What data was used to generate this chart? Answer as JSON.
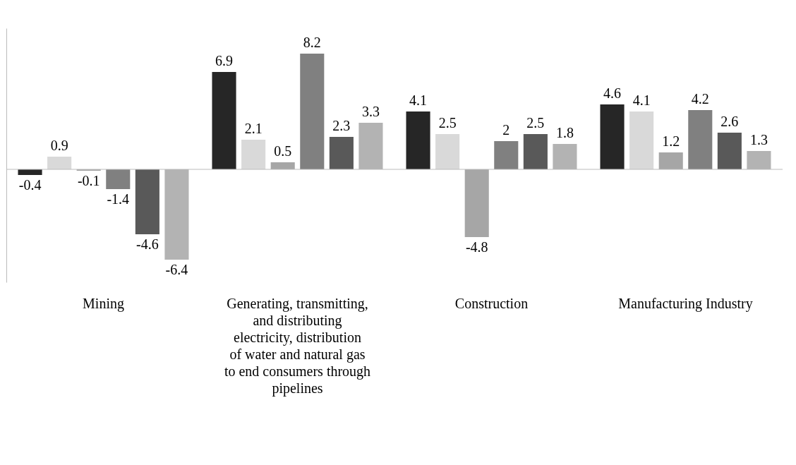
{
  "chart_data": {
    "type": "bar",
    "categories": [
      "Mining",
      "Generating, transmitting, and distributing electricity, distribution of water and natural gas to end consumers through pipelines",
      "Construction",
      "Manufacturing Industry"
    ],
    "series": [
      {
        "color": "#262626",
        "values": [
          -0.4,
          6.9,
          4.1,
          4.6
        ]
      },
      {
        "color": "#d9d9d9",
        "values": [
          0.9,
          2.1,
          2.5,
          4.1
        ]
      },
      {
        "color": "#a6a6a6",
        "values": [
          -0.1,
          0.5,
          -4.8,
          1.2
        ]
      },
      {
        "color": "#808080",
        "values": [
          -1.4,
          8.2,
          2,
          4.2
        ]
      },
      {
        "color": "#595959",
        "values": [
          -4.6,
          2.3,
          2.5,
          2.6
        ]
      },
      {
        "color": "#b3b3b3",
        "values": [
          -6.4,
          3.3,
          1.8,
          1.3
        ]
      }
    ],
    "data_labels": true,
    "tick_labels": "x",
    "legend": false,
    "grid": false
  }
}
